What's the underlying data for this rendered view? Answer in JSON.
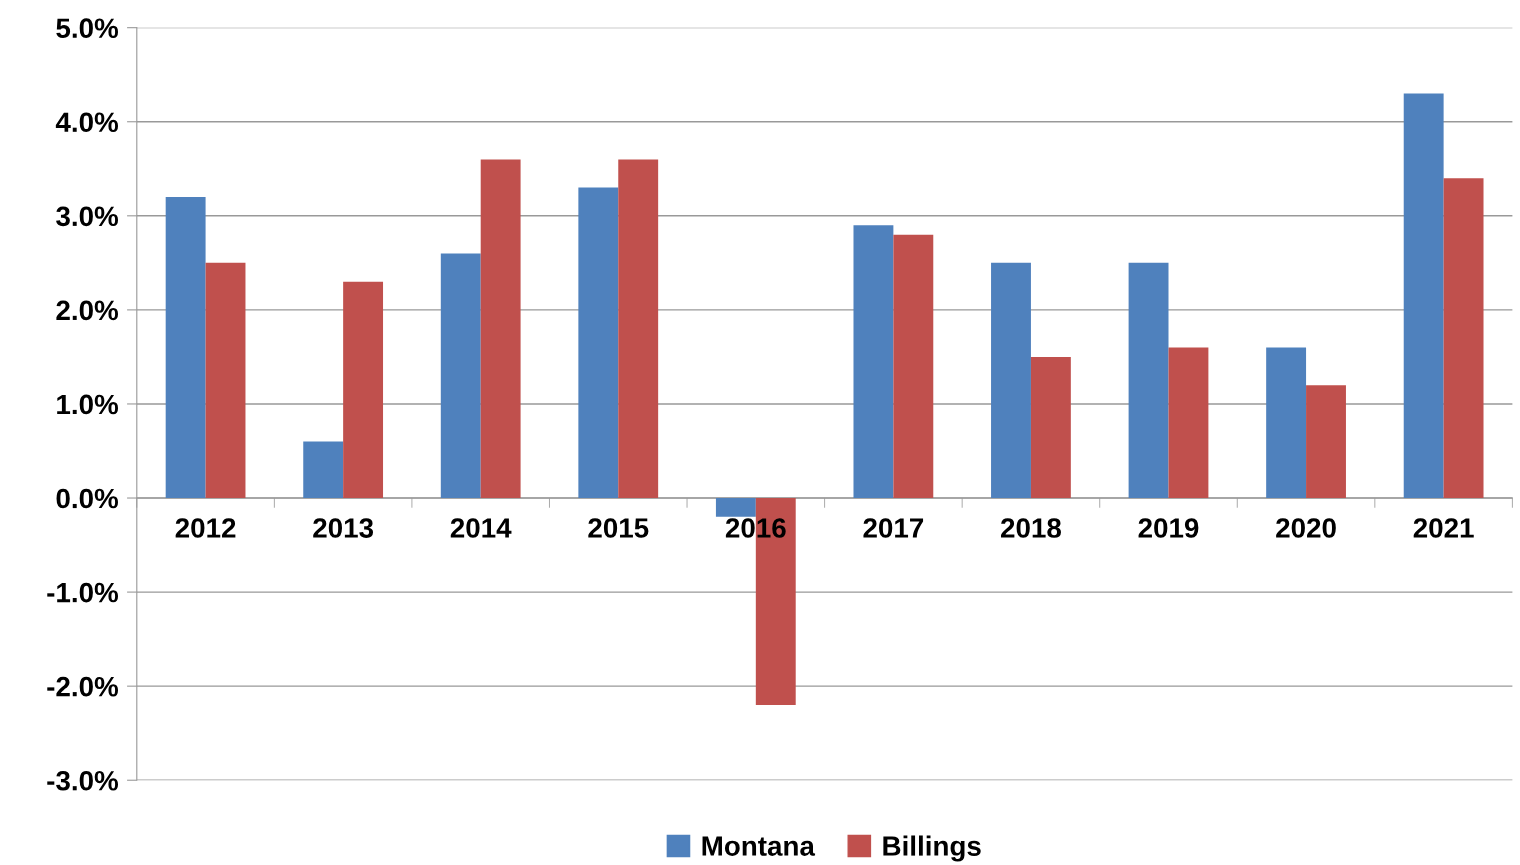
{
  "chart_data": {
    "type": "bar",
    "categories": [
      "2012",
      "2013",
      "2014",
      "2015",
      "2016",
      "2017",
      "2018",
      "2019",
      "2020",
      "2021"
    ],
    "series": [
      {
        "name": "Montana",
        "color": "#4f81bd",
        "values": [
          3.2,
          0.6,
          2.6,
          3.3,
          -0.2,
          2.9,
          2.5,
          2.5,
          1.6,
          4.3
        ]
      },
      {
        "name": "Billings",
        "color": "#c0504d",
        "values": [
          2.5,
          2.3,
          3.6,
          3.6,
          -2.2,
          2.8,
          1.5,
          1.6,
          1.2,
          3.4
        ]
      }
    ],
    "ylim": [
      -3,
      5
    ],
    "yticks": [
      {
        "value": -3,
        "label": "-3.0%"
      },
      {
        "value": -2,
        "label": "-2.0%"
      },
      {
        "value": -1,
        "label": "-1.0%"
      },
      {
        "value": 0,
        "label": "0.0%"
      },
      {
        "value": 1,
        "label": "1.0%"
      },
      {
        "value": 2,
        "label": "2.0%"
      },
      {
        "value": 3,
        "label": "3.0%"
      },
      {
        "value": 4,
        "label": "4.0%"
      },
      {
        "value": 5,
        "label": "5.0%"
      }
    ],
    "grid": "y",
    "legend": "bottom"
  }
}
